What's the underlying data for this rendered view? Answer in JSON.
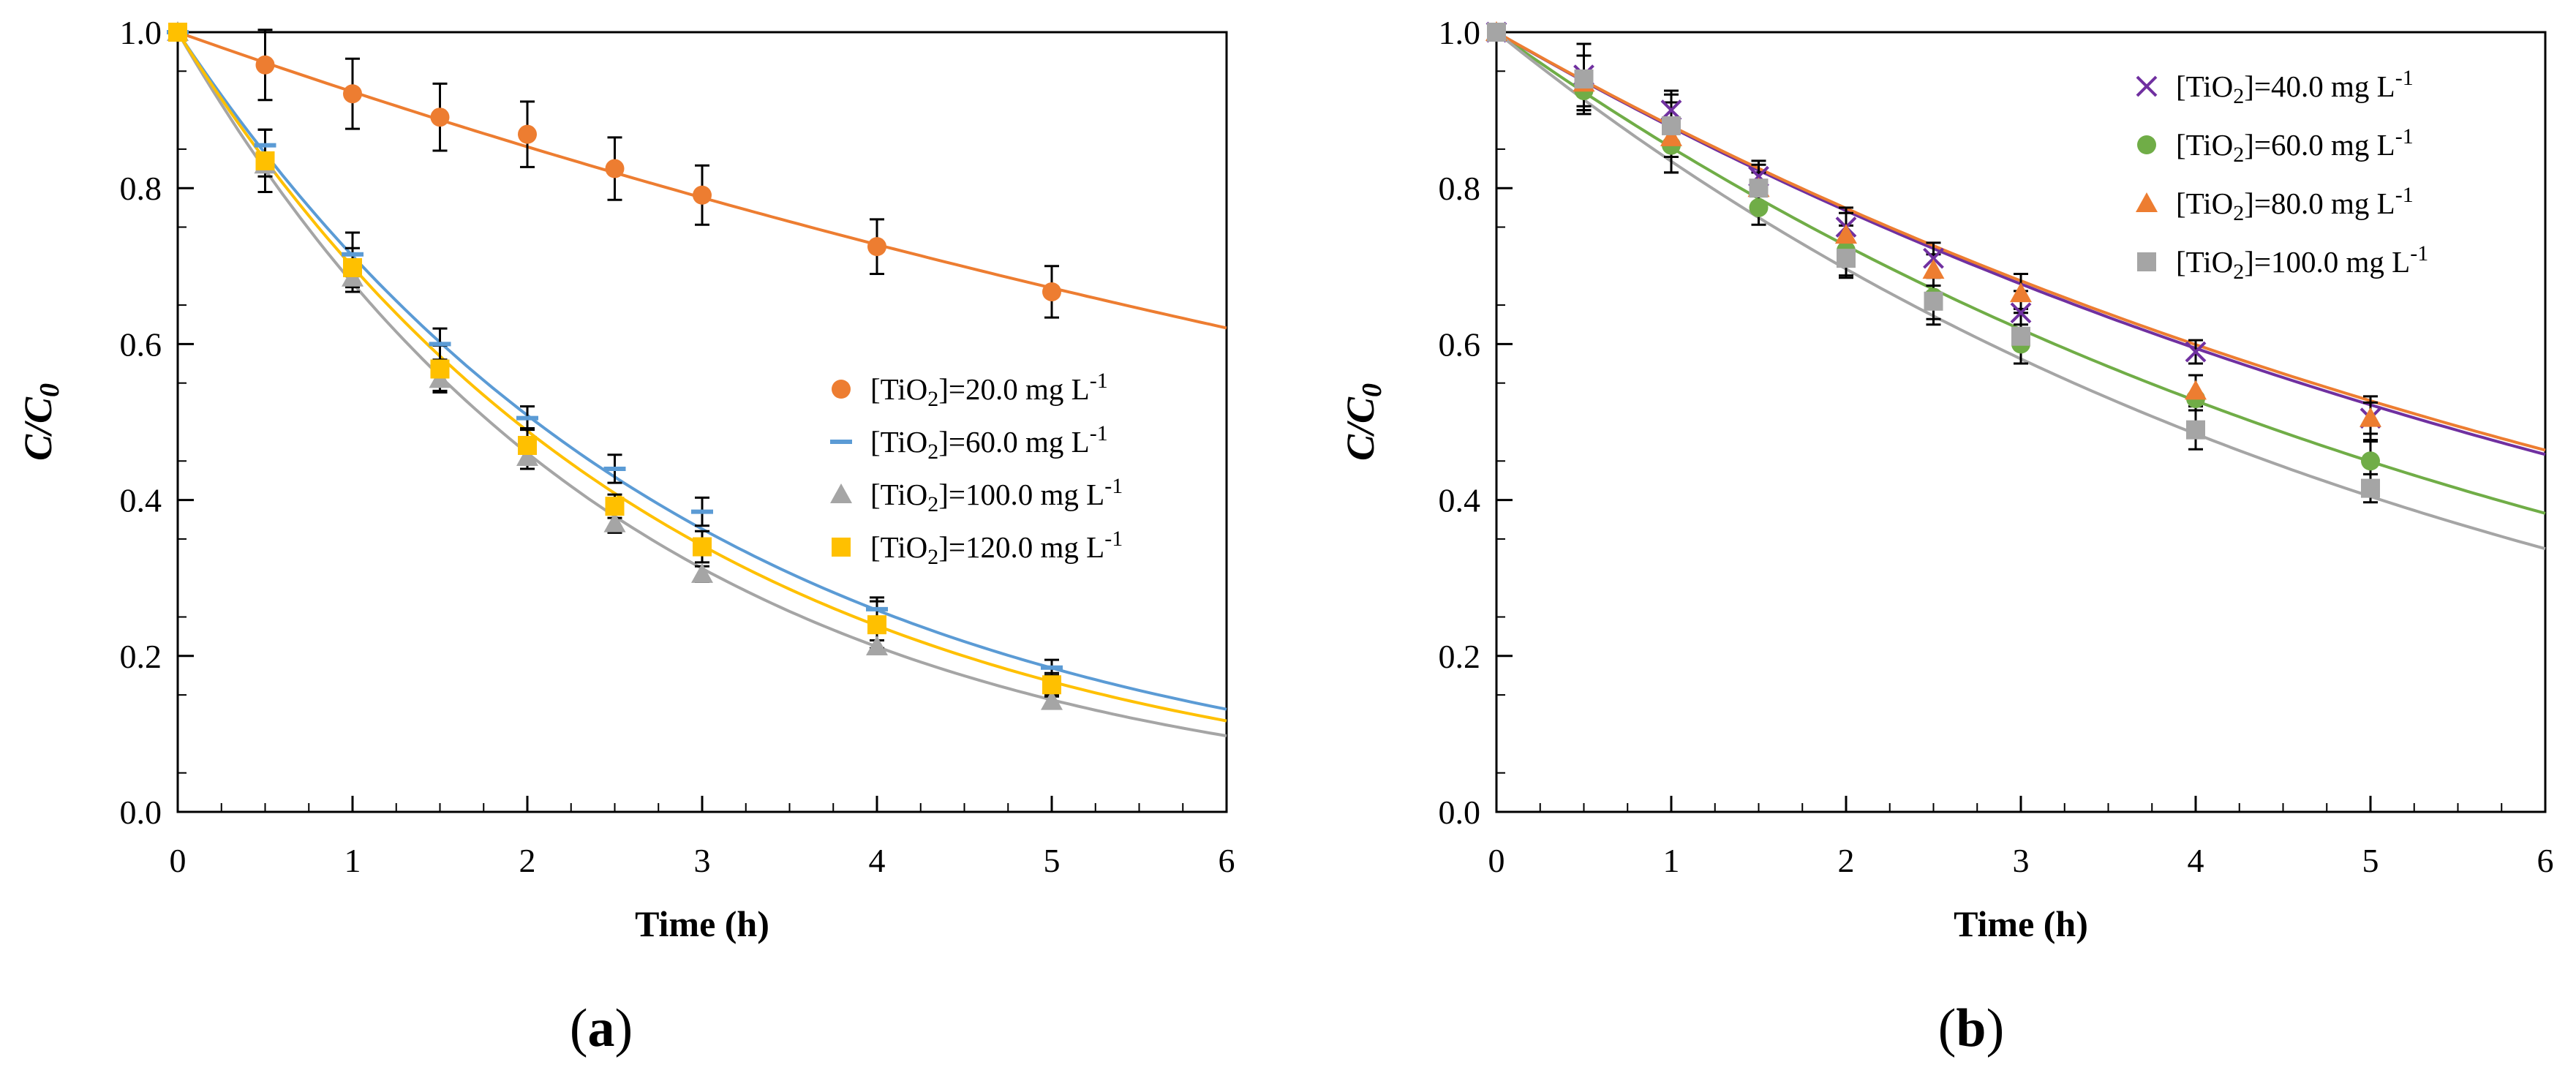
{
  "chart_data": [
    {
      "type": "scatter",
      "panel_label": "(a)",
      "xlabel": "Time (h)",
      "ylabel": "C/C0",
      "ylabel_parts": {
        "main": "C/C",
        "sub": "0"
      },
      "xlim": [
        0,
        6
      ],
      "ylim": [
        0,
        1.0
      ],
      "x_ticks": [
        "0",
        "1",
        "2",
        "3",
        "4",
        "5",
        "6"
      ],
      "y_ticks": [
        "0.0",
        "0.2",
        "0.4",
        "0.6",
        "0.8",
        "1.0"
      ],
      "grid": false,
      "legend_position": "center-right",
      "series": [
        {
          "name": "[TiO2]=20.0 mg L-1",
          "label_parts": {
            "a": "[TiO",
            "sub": "2",
            "b": "]=20.0 mg L",
            "sup": "-1"
          },
          "marker": "circle",
          "color": "#ED7D31",
          "x": [
            0,
            0.5,
            1,
            1.5,
            2,
            2.5,
            3,
            4,
            5
          ],
          "y": [
            1.0,
            0.958,
            0.921,
            0.891,
            0.869,
            0.825,
            0.791,
            0.725,
            0.667
          ],
          "error": [
            0,
            0.045,
            0.045,
            0.043,
            0.042,
            0.04,
            0.038,
            0.035,
            0.033
          ],
          "fit_k": 0.0795
        },
        {
          "name": "[TiO2]=60.0 mg L-1",
          "label_parts": {
            "a": "[TiO",
            "sub": "2",
            "b": "]=60.0 mg L",
            "sup": "-1"
          },
          "marker": "dash",
          "color": "#5B9BD5",
          "x": [
            0,
            0.5,
            1,
            1.5,
            2,
            2.5,
            3,
            4,
            5
          ],
          "y": [
            1.0,
            0.855,
            0.715,
            0.6,
            0.505,
            0.44,
            0.385,
            0.26,
            0.185
          ],
          "error": [
            0,
            0.02,
            0.028,
            0.02,
            0.015,
            0.018,
            0.018,
            0.015,
            0.01
          ],
          "fit_k": 0.338
        },
        {
          "name": "[TiO2]=100.0 mg L-1",
          "label_parts": {
            "a": "[TiO",
            "sub": "2",
            "b": "]=100.0 mg L",
            "sup": "-1"
          },
          "marker": "triangle",
          "color": "#A5A5A5",
          "x": [
            0,
            0.5,
            1,
            1.5,
            2,
            2.5,
            3,
            4,
            5
          ],
          "y": [
            1.0,
            0.83,
            0.685,
            0.555,
            0.455,
            0.37,
            0.305,
            0.212,
            0.142
          ],
          "error": [
            0,
            0.015,
            0.018,
            0.015,
            0.015,
            0.012,
            0.01,
            0.008,
            0.008
          ],
          "fit_k": 0.388
        },
        {
          "name": "[TiO2]=120.0 mg L-1",
          "label_parts": {
            "a": "[TiO",
            "sub": "2",
            "b": "]=120.0 mg L",
            "sup": "-1"
          },
          "marker": "square",
          "color": "#FFC000",
          "x": [
            0,
            0.5,
            1,
            1.5,
            2,
            2.5,
            3,
            4,
            5
          ],
          "y": [
            1.0,
            0.835,
            0.698,
            0.568,
            0.47,
            0.392,
            0.34,
            0.24,
            0.163
          ],
          "error": [
            0,
            0.04,
            0.025,
            0.03,
            0.022,
            0.015,
            0.02,
            0.03,
            0.015
          ],
          "fit_k": 0.358
        }
      ]
    },
    {
      "type": "scatter",
      "panel_label": "(b)",
      "xlabel": "Time (h)",
      "ylabel": "C/C0",
      "ylabel_parts": {
        "main": "C/C",
        "sub": "0"
      },
      "xlim": [
        0,
        6
      ],
      "ylim": [
        0,
        1.0
      ],
      "x_ticks": [
        "0",
        "1",
        "2",
        "3",
        "4",
        "5",
        "6"
      ],
      "y_ticks": [
        "0.0",
        "0.2",
        "0.4",
        "0.6",
        "0.8",
        "1.0"
      ],
      "grid": false,
      "legend_position": "top-right",
      "series": [
        {
          "name": "[TiO2]=40.0 mg L-1",
          "label_parts": {
            "a": "[TiO",
            "sub": "2",
            "b": "]=40.0 mg L",
            "sup": "-1"
          },
          "marker": "x",
          "color": "#7030A0",
          "x": [
            0,
            0.5,
            1,
            1.5,
            2,
            2.5,
            3,
            4,
            5
          ],
          "y": [
            1.0,
            0.945,
            0.9,
            0.815,
            0.75,
            0.71,
            0.64,
            0.59,
            0.505
          ],
          "error": [
            0,
            0.04,
            0.025,
            0.02,
            0.025,
            0.02,
            0.028,
            0.015,
            0.028
          ],
          "fit_k": 0.13
        },
        {
          "name": "[TiO2]=60.0 mg L-1",
          "label_parts": {
            "a": "[TiO",
            "sub": "2",
            "b": "]=60.0 mg L",
            "sup": "-1"
          },
          "marker": "circle",
          "color": "#70AD47",
          "x": [
            0,
            0.5,
            1,
            1.5,
            2,
            2.5,
            3,
            4,
            5
          ],
          "y": [
            1.0,
            0.925,
            0.855,
            0.775,
            0.72,
            0.66,
            0.6,
            0.53,
            0.45
          ],
          "error": [
            0,
            0.025,
            0.035,
            0.022,
            0.032,
            0.028,
            0.025,
            0.03,
            0.025
          ],
          "fit_k": 0.16
        },
        {
          "name": "[TiO2]=80.0 mg L-1",
          "label_parts": {
            "a": "[TiO",
            "sub": "2",
            "b": "]=80.0 mg L",
            "sup": "-1"
          },
          "marker": "triangle",
          "color": "#ED7D31",
          "x": [
            0,
            0.5,
            1,
            1.5,
            2,
            2.5,
            3,
            4,
            5
          ],
          "y": [
            1.0,
            0.935,
            0.865,
            0.8,
            0.74,
            0.695,
            0.665,
            0.54,
            0.505
          ],
          "error": [
            0,
            0.035,
            0.045,
            0.02,
            0.028,
            0.02,
            0.025,
            0.02,
            0.02
          ],
          "fit_k": 0.128
        },
        {
          "name": "[TiO2]=100.0 mg L-1",
          "label_parts": {
            "a": "[TiO",
            "sub": "2",
            "b": "]=100.0 mg L",
            "sup": "-1"
          },
          "marker": "square",
          "color": "#A5A5A5",
          "x": [
            0,
            0.5,
            1,
            1.5,
            2,
            2.5,
            3,
            4,
            5
          ],
          "y": [
            1.0,
            0.94,
            0.88,
            0.8,
            0.71,
            0.655,
            0.61,
            0.49,
            0.415
          ],
          "error": [
            0,
            0.045,
            0.04,
            0.03,
            0.025,
            0.03,
            0.035,
            0.025,
            0.018
          ],
          "fit_k": 0.181
        }
      ]
    }
  ]
}
